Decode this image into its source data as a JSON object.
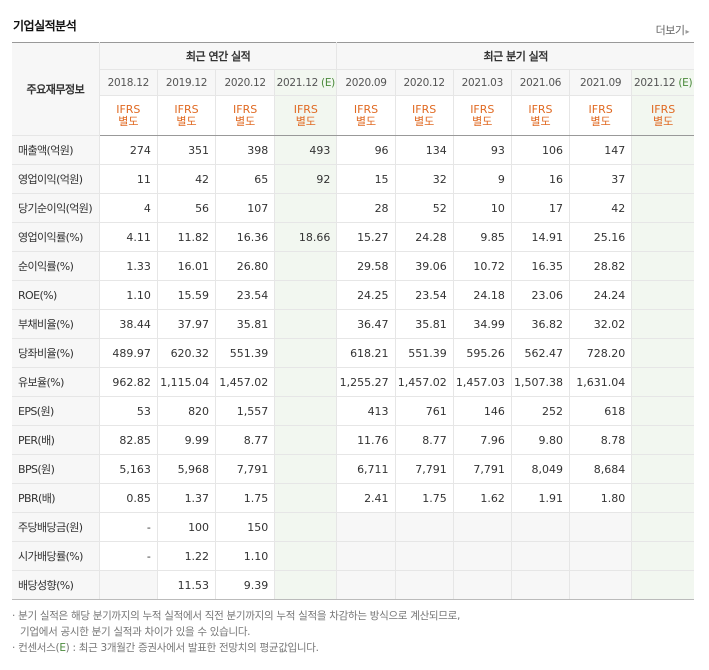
{
  "title": "기업실적분석",
  "more_label": "더보기",
  "corner_label": "주요재무정보",
  "annual_header": "최근 연간 실적",
  "quarter_header": "최근 분기 실적",
  "annual_periods": [
    "2018.12",
    "2019.12",
    "2020.12",
    "2021.12"
  ],
  "quarter_periods": [
    "2020.09",
    "2020.12",
    "2021.03",
    "2021.06",
    "2021.09",
    "2021.12"
  ],
  "estimate_mark": "(E)",
  "ifrs_line1": "IFRS",
  "ifrs_line2": "별도",
  "rows": [
    {
      "label": "매출액(억원)",
      "a": [
        "274",
        "351",
        "398",
        "493"
      ],
      "q": [
        "96",
        "134",
        "93",
        "106",
        "147",
        ""
      ]
    },
    {
      "label": "영업이익(억원)",
      "a": [
        "11",
        "42",
        "65",
        "92"
      ],
      "q": [
        "15",
        "32",
        "9",
        "16",
        "37",
        ""
      ]
    },
    {
      "label": "당기순이익(억원)",
      "a": [
        "4",
        "56",
        "107",
        ""
      ],
      "q": [
        "28",
        "52",
        "10",
        "17",
        "42",
        ""
      ]
    },
    {
      "label": "영업이익률(%)",
      "a": [
        "4.11",
        "11.82",
        "16.36",
        "18.66"
      ],
      "q": [
        "15.27",
        "24.28",
        "9.85",
        "14.91",
        "25.16",
        ""
      ]
    },
    {
      "label": "순이익률(%)",
      "a": [
        "1.33",
        "16.01",
        "26.80",
        ""
      ],
      "q": [
        "29.58",
        "39.06",
        "10.72",
        "16.35",
        "28.82",
        ""
      ]
    },
    {
      "label": "ROE(%)",
      "a": [
        "1.10",
        "15.59",
        "23.54",
        ""
      ],
      "q": [
        "24.25",
        "23.54",
        "24.18",
        "23.06",
        "24.24",
        ""
      ]
    },
    {
      "label": "부채비율(%)",
      "a": [
        "38.44",
        "37.97",
        "35.81",
        ""
      ],
      "q": [
        "36.47",
        "35.81",
        "34.99",
        "36.82",
        "32.02",
        ""
      ]
    },
    {
      "label": "당좌비율(%)",
      "a": [
        "489.97",
        "620.32",
        "551.39",
        ""
      ],
      "q": [
        "618.21",
        "551.39",
        "595.26",
        "562.47",
        "728.20",
        ""
      ]
    },
    {
      "label": "유보율(%)",
      "a": [
        "962.82",
        "1,115.04",
        "1,457.02",
        ""
      ],
      "q": [
        "1,255.27",
        "1,457.02",
        "1,457.03",
        "1,507.38",
        "1,631.04",
        ""
      ]
    },
    {
      "label": "EPS(원)",
      "a": [
        "53",
        "820",
        "1,557",
        ""
      ],
      "q": [
        "413",
        "761",
        "146",
        "252",
        "618",
        ""
      ]
    },
    {
      "label": "PER(배)",
      "a": [
        "82.85",
        "9.99",
        "8.77",
        ""
      ],
      "q": [
        "11.76",
        "8.77",
        "7.96",
        "9.80",
        "8.78",
        ""
      ]
    },
    {
      "label": "BPS(원)",
      "a": [
        "5,163",
        "5,968",
        "7,791",
        ""
      ],
      "q": [
        "6,711",
        "7,791",
        "7,791",
        "8,049",
        "8,684",
        ""
      ]
    },
    {
      "label": "PBR(배)",
      "a": [
        "0.85",
        "1.37",
        "1.75",
        ""
      ],
      "q": [
        "2.41",
        "1.75",
        "1.62",
        "1.91",
        "1.80",
        ""
      ]
    },
    {
      "label": "주당배당금(원)",
      "a": [
        "-",
        "100",
        "150",
        ""
      ],
      "q": [
        "",
        "",
        "",
        "",
        "",
        ""
      ]
    },
    {
      "label": "시가배당률(%)",
      "a": [
        "-",
        "1.22",
        "1.10",
        ""
      ],
      "q": [
        "",
        "",
        "",
        "",
        "",
        ""
      ]
    },
    {
      "label": "배당성향(%)",
      "a": [
        "",
        "11.53",
        "9.39",
        ""
      ],
      "q": [
        "",
        "",
        "",
        "",
        "",
        ""
      ]
    }
  ],
  "notes": {
    "line1": "분기 실적은 해당 분기까지의 누적 실적에서 직전 분기까지의 누적 실적을 차감하는 방식으로 계산되므로,",
    "line2": "기업에서 공시한 분기 실적과 차이가 있을 수 있습니다.",
    "line3_prefix": "컨센서스(",
    "line3_mark": "E",
    "line3_suffix": ") : 최근 3개월간 증권사에서 발표한 전망치의 평균값입니다."
  }
}
